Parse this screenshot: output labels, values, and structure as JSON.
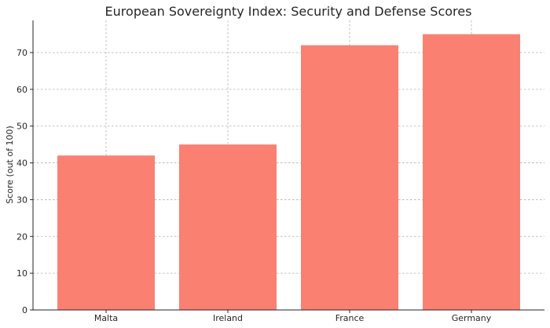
{
  "chart_data": {
    "type": "bar",
    "title": "European Sovereignty Index: Security and Defense Scores",
    "xlabel": "",
    "ylabel": "Score (out of 100)",
    "categories": [
      "Malta",
      "Ireland",
      "France",
      "Germany"
    ],
    "values": [
      42,
      45,
      72,
      75
    ],
    "ylim": [
      0,
      78.75
    ],
    "yticks": [
      0,
      10,
      20,
      30,
      40,
      50,
      60,
      70
    ],
    "grid": true,
    "bar_color": "#fa8072",
    "legend": "none"
  }
}
